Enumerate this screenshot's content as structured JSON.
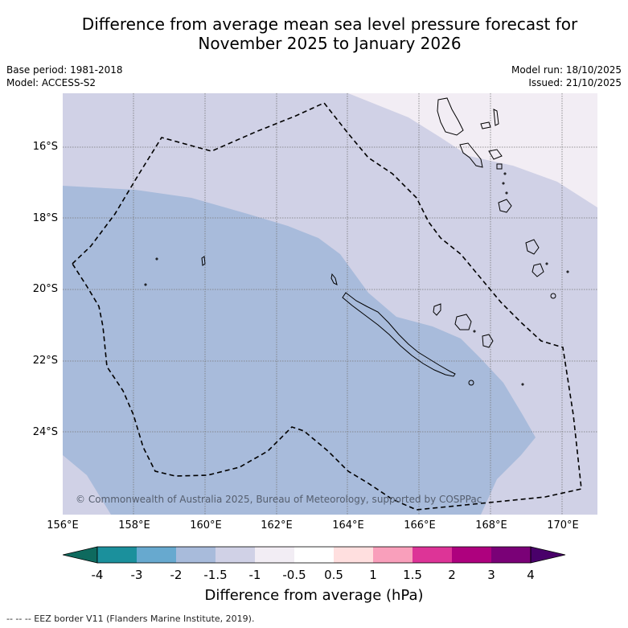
{
  "title": {
    "line1": "Difference from average mean sea level pressure forecast for",
    "line2": "November 2025 to January 2026"
  },
  "meta": {
    "base_period": "Base period: 1981-2018",
    "model": "Model: ACCESS-S2",
    "model_run": "Model run: 18/10/2025",
    "issued": "Issued: 21/10/2025"
  },
  "map": {
    "region": "New Caledonia",
    "lat_labels": [
      "16°S",
      "18°S",
      "20°S",
      "22°S",
      "24°S"
    ],
    "lon_labels": [
      "156°E",
      "158°E",
      "160°E",
      "162°E",
      "164°E",
      "166°E",
      "168°E",
      "170°E"
    ],
    "copyright": "© Commonwealth of Australia 2025, Bureau of Meteorology, supported by COSPPac",
    "zones": [
      {
        "name": "-2 to -1.5 hPa",
        "color": "#a8bbdb"
      },
      {
        "name": "-1.5 to -1 hPa",
        "color": "#d0d1e6"
      },
      {
        "name": "-1 to -0.5 hPa",
        "color": "#f2edf4"
      }
    ]
  },
  "colorbar": {
    "ticks": [
      "-4",
      "-3",
      "-2",
      "-1.5",
      "-1",
      "-0.5",
      "0.5",
      "1",
      "1.5",
      "2",
      "3",
      "4"
    ],
    "colors": [
      "#0e6a5e",
      "#1b909c",
      "#67a9cf",
      "#a8bbdb",
      "#d0d1e6",
      "#f2edf4",
      "#ffffff",
      "#ffdfdf",
      "#f99fbb",
      "#dd3497",
      "#ae017e",
      "#7a0177",
      "#49006a"
    ],
    "label": "Difference from average (hPa)"
  },
  "legend": {
    "eez_text": "-- -- -- EEZ border V11 (Flanders Marine Institute, 2019)."
  }
}
